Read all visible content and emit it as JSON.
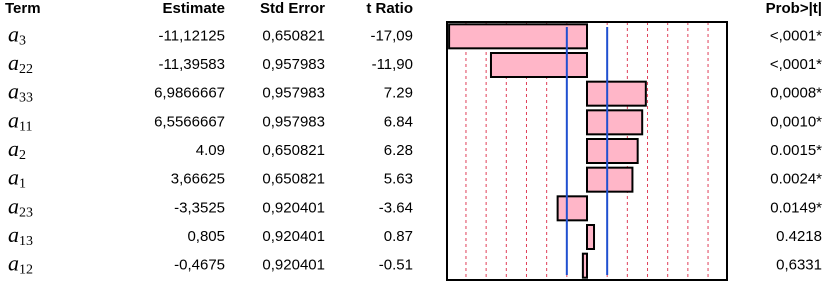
{
  "table": {
    "headers": [
      "Term",
      "Estimate",
      "Std Error",
      "t Ratio",
      "Prob>|t|"
    ],
    "rows": [
      {
        "term": {
          "symbol": "a",
          "sub": "3"
        },
        "estimate": "-11,12125",
        "std_error": "0,650821",
        "t_ratio": {
          "value": -17.09,
          "label": "-17,09"
        },
        "prob": "<,0001*"
      },
      {
        "term": {
          "symbol": "a",
          "sub": "22"
        },
        "estimate": "-11,39583",
        "std_error": "0,957983",
        "t_ratio": {
          "value": -11.9,
          "label": "-11,90"
        },
        "prob": "<,0001*"
      },
      {
        "term": {
          "symbol": "a",
          "sub": "33"
        },
        "estimate": "6,9866667",
        "std_error": "0,957983",
        "t_ratio": 7.29,
        "prob": "0,0008*"
      },
      {
        "term": {
          "symbol": "a",
          "sub": "11"
        },
        "estimate": "6,5566667",
        "std_error": "0,957983",
        "t_ratio": 6.84,
        "prob": "0,0010*"
      },
      {
        "term": {
          "symbol": "a",
          "sub": "2"
        },
        "estimate": "4.09",
        "std_error": "0,650821",
        "t_ratio": 6.28,
        "prob": "0.0015*"
      },
      {
        "term": {
          "symbol": "a",
          "sub": "1"
        },
        "estimate": "3,66625",
        "std_error": "0,650821",
        "t_ratio": 5.63,
        "prob": "0.0024*"
      },
      {
        "term": {
          "symbol": "a",
          "sub": "23"
        },
        "estimate": "-3,3525",
        "std_error": "0,920401",
        "t_ratio": -3.64,
        "prob": "0.0149*"
      },
      {
        "term": {
          "symbol": "a",
          "sub": "13"
        },
        "estimate": "0,805",
        "std_error": "0,920401",
        "t_ratio": 0.87,
        "prob": "0.4218"
      },
      {
        "term": {
          "symbol": "a",
          "sub": "12"
        },
        "estimate": "-0,4675",
        "std_error": "0,920401",
        "t_ratio": -0.51,
        "prob": "0,6331"
      }
    ],
    "bar_axis": {
      "lim": [
        -17.35,
        17.35
      ],
      "ticks": [
        -15,
        -12.5,
        -10,
        -7.5,
        -5,
        -2.5,
        2.5,
        5,
        7.5,
        10,
        12.5,
        15
      ],
      "reference_lines": [
        -2.5,
        2.5
      ],
      "bar_color": "#ffb6c8",
      "grid_color": "#e0405a",
      "reference_color": "#2050d0"
    }
  }
}
